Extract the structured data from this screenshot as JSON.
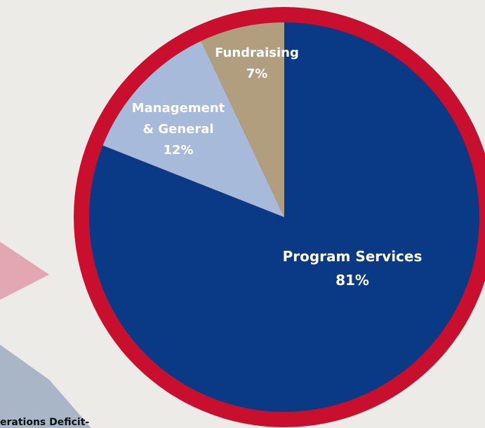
{
  "colors": {
    "background": "#ecebe7",
    "outer_ring": "#c8102e",
    "pink_shape": "#e2a7b1",
    "blue_grey_shape": "#a9b6c8",
    "program_services": "#0a3a85",
    "management_general": "#a8bad9",
    "fundraising": "#b09e7f"
  },
  "chart_data": {
    "type": "pie",
    "title": "",
    "slices": [
      {
        "label_lines": [
          "Program Services",
          "81%"
        ],
        "value": 81,
        "color": "#0a3a85"
      },
      {
        "label_lines": [
          "Management",
          "& General",
          "12%"
        ],
        "value": 12,
        "color": "#a8bad9"
      },
      {
        "label_lines": [
          "Fundraising",
          "7%"
        ],
        "value": 7,
        "color": "#b09e7f"
      }
    ],
    "start": "top",
    "direction": "clockwise"
  },
  "bottom_text": "erations Deficit-"
}
